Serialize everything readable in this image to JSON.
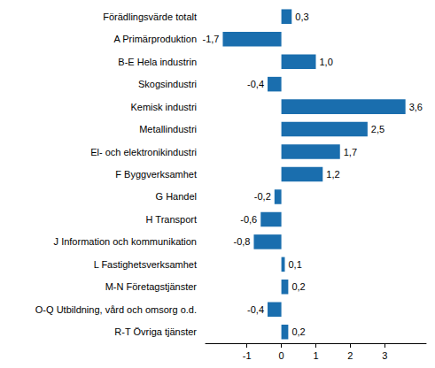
{
  "chart_data": {
    "type": "bar",
    "orientation": "horizontal",
    "categories": [
      "Förädlingsvärde totalt",
      "A Primärproduktion",
      "B-E Hela industrin",
      "Skogsindustri",
      "Kemisk industri",
      "Metallindustri",
      "El- och elektronikindustri",
      "F Byggverksamhet",
      "G Handel",
      "H Transport",
      "J Information och kommunikation",
      "L Fastighetsverksamhet",
      "M-N Företagstjänster",
      "O-Q Utbildning, vård och omsorg o.d.",
      "R-T Övriga tjänster"
    ],
    "values": [
      0.3,
      -1.7,
      1.0,
      -0.4,
      3.6,
      2.5,
      1.7,
      1.2,
      -0.2,
      -0.6,
      -0.8,
      0.1,
      0.2,
      -0.4,
      0.2
    ],
    "value_labels": [
      "0,3",
      "-1,7",
      "1,0",
      "-0,4",
      "3,6",
      "2,5",
      "1,7",
      "1,2",
      "-0,2",
      "-0,6",
      "-0,8",
      "0,1",
      "0,2",
      "-0,4",
      "0,2"
    ],
    "color": "#1a6eae",
    "xlim": [
      -2.2,
      4.2
    ],
    "xticks": [
      -1,
      0,
      1,
      2,
      3
    ],
    "grid": false,
    "data_labels": true
  }
}
